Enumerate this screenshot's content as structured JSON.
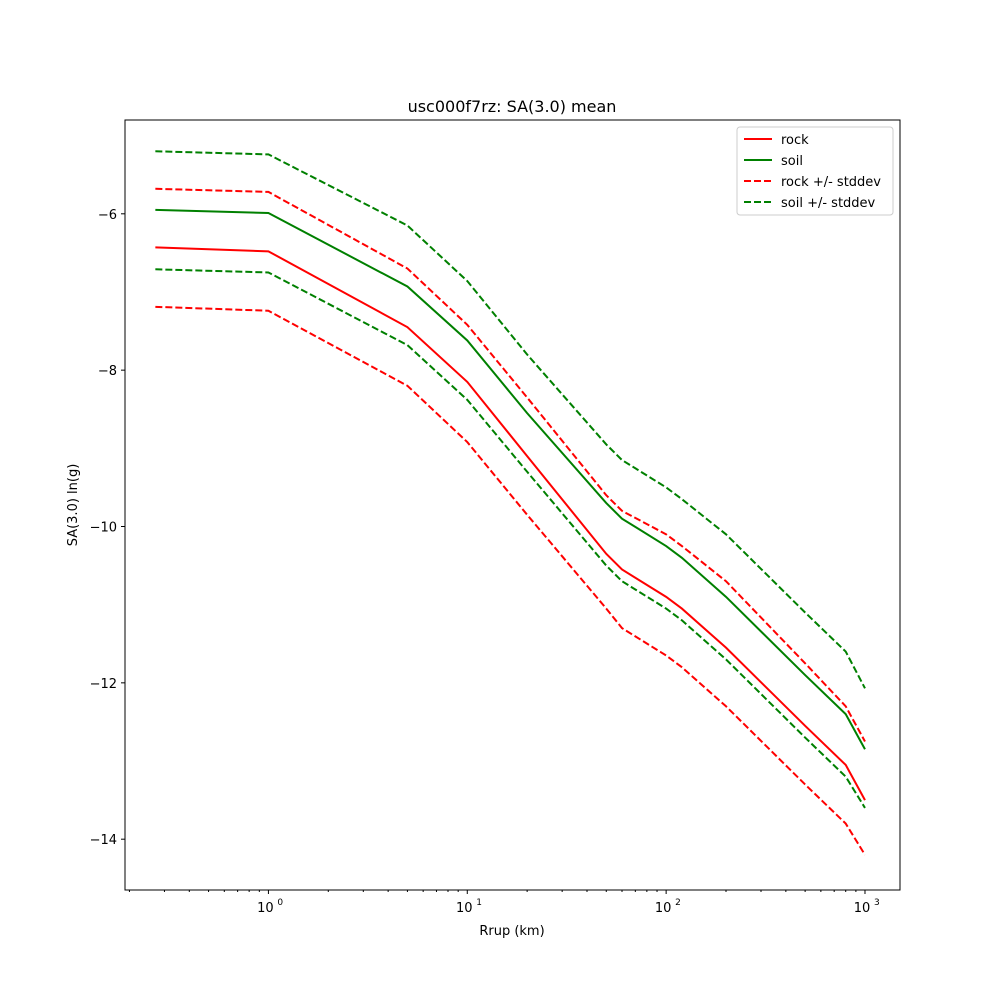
{
  "chart_data": {
    "type": "line",
    "title": "usc000f7rz: SA(3.0) mean",
    "xlabel": "Rrup (km)",
    "ylabel": "SA(3.0) ln(g)",
    "xscale": "log",
    "xlim": [
      0.19,
      1500
    ],
    "ylim": [
      -14.65,
      -4.8
    ],
    "yticks": [
      -14,
      -12,
      -10,
      -8,
      -6
    ],
    "ytick_labels": [
      "−14",
      "−12",
      "−10",
      "−8",
      "−6"
    ],
    "xticks": [
      {
        "value": 1,
        "base": "10",
        "exp": "0"
      },
      {
        "value": 10,
        "base": "10",
        "exp": "1"
      },
      {
        "value": 100,
        "base": "10",
        "exp": "2"
      },
      {
        "value": 1000,
        "base": "10",
        "exp": "3"
      }
    ],
    "grid": false,
    "legend_position": "top-right",
    "x": [
      0.27,
      1,
      5,
      10,
      20,
      50,
      60,
      100,
      120,
      200,
      500,
      800,
      1000
    ],
    "series": [
      {
        "name": "rock",
        "color": "#ff0000",
        "dash": "solid",
        "values": [
          -6.43,
          -6.48,
          -7.45,
          -8.15,
          -9.1,
          -10.35,
          -10.55,
          -10.9,
          -11.05,
          -11.55,
          -12.55,
          -13.05,
          -13.5
        ]
      },
      {
        "name": "soil",
        "color": "#008000",
        "dash": "solid",
        "values": [
          -5.95,
          -5.99,
          -6.93,
          -7.62,
          -8.55,
          -9.7,
          -9.9,
          -10.25,
          -10.4,
          -10.9,
          -11.9,
          -12.4,
          -12.85
        ]
      },
      {
        "name": "rock +/- stddev",
        "color": "#ff0000",
        "dash": "dashed",
        "values": [
          -5.68,
          -5.72,
          -6.7,
          -7.42,
          -8.35,
          -9.6,
          -9.8,
          -10.1,
          -10.25,
          -10.7,
          -11.75,
          -12.3,
          -12.75
        ]
      },
      {
        "name": "rock +/- stddev",
        "color": "#ff0000",
        "dash": "dashed",
        "legend": false,
        "values": [
          -7.19,
          -7.24,
          -8.2,
          -8.92,
          -9.85,
          -11.05,
          -11.3,
          -11.65,
          -11.8,
          -12.3,
          -13.3,
          -13.8,
          -14.2
        ]
      },
      {
        "name": "soil +/- stddev",
        "color": "#008000",
        "dash": "dashed",
        "values": [
          -5.2,
          -5.24,
          -6.15,
          -6.86,
          -7.8,
          -8.95,
          -9.15,
          -9.5,
          -9.65,
          -10.1,
          -11.1,
          -11.6,
          -12.07
        ]
      },
      {
        "name": "soil +/- stddev",
        "color": "#008000",
        "dash": "dashed",
        "legend": false,
        "values": [
          -6.71,
          -6.75,
          -7.68,
          -8.38,
          -9.3,
          -10.5,
          -10.7,
          -11.05,
          -11.2,
          -11.7,
          -12.7,
          -13.2,
          -13.6
        ]
      }
    ]
  }
}
